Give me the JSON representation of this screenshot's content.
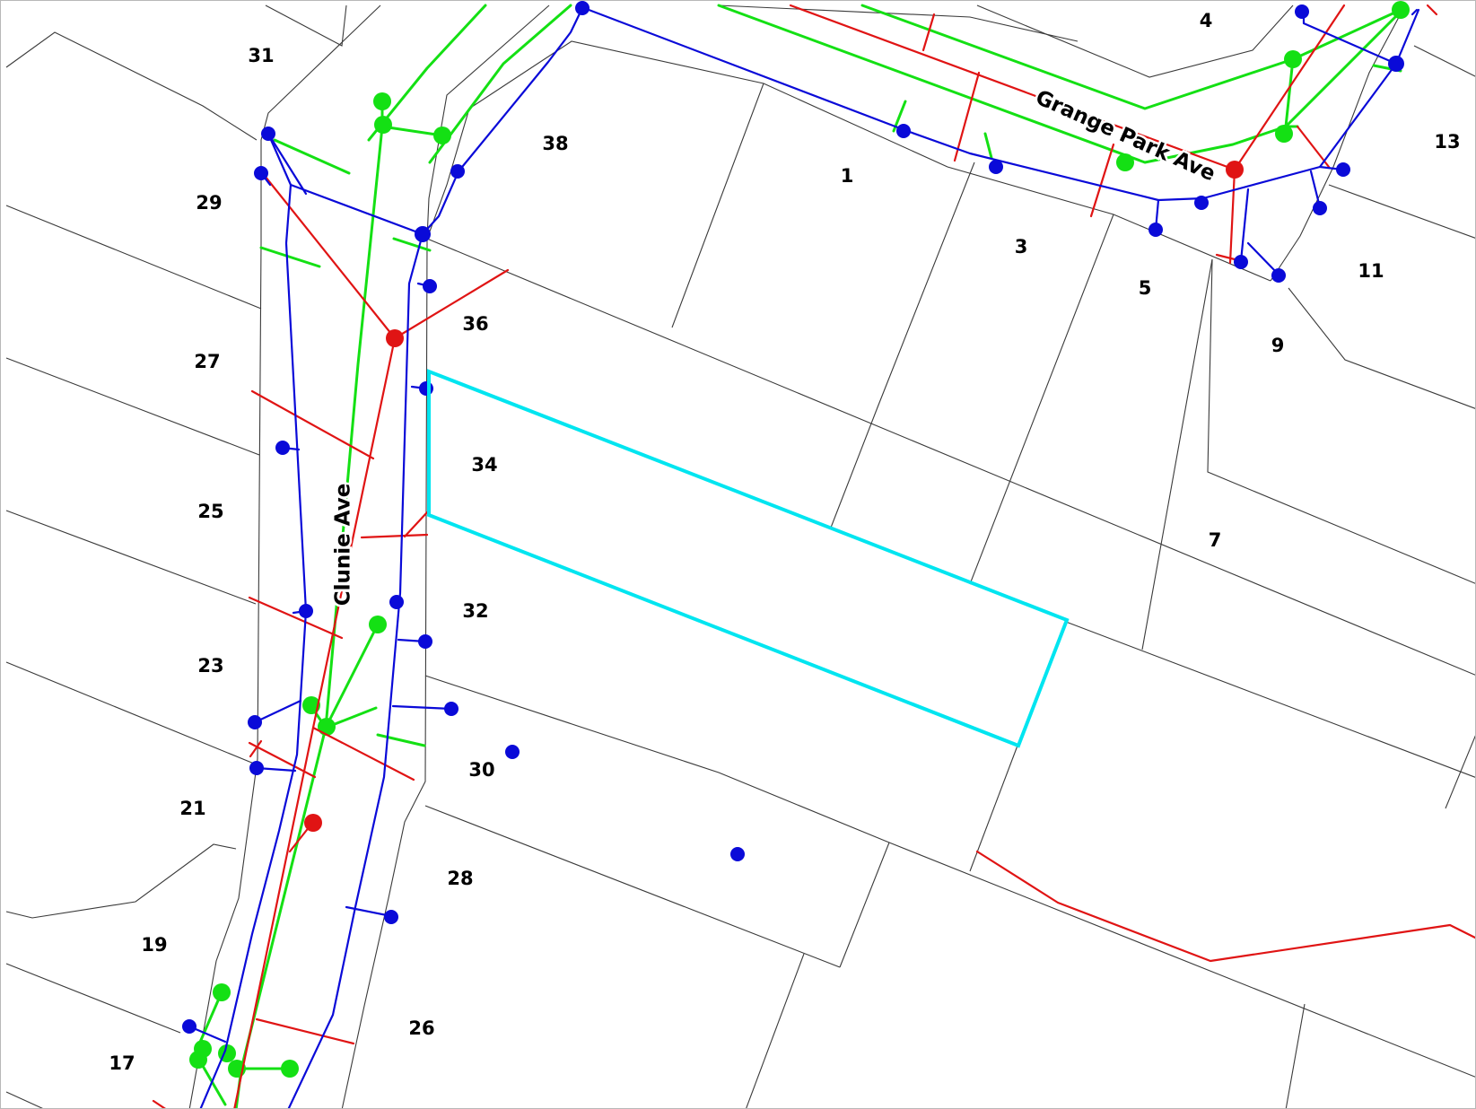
{
  "map": {
    "streets": {
      "clunie": "Clunie Ave",
      "grange_park": "Grange Park Ave"
    },
    "lots": {
      "l31": "31",
      "l29": "29",
      "l27": "27",
      "l25": "25",
      "l23": "23",
      "l21": "21",
      "l19": "19",
      "l17": "17",
      "l38": "38",
      "l36": "36",
      "l34": "34",
      "l32": "32",
      "l30": "30",
      "l28": "28",
      "l26": "26",
      "l1": "1",
      "l3": "3",
      "l5": "5",
      "l7": "7",
      "l9": "9",
      "l11": "11",
      "l13": "13",
      "l4": "4"
    },
    "selected_parcel": "34",
    "colors": {
      "water": "#0a0ad8",
      "gas": "#14e014",
      "power": "#e01414",
      "highlight": "#00e5f0",
      "parcel_outline": "#3a3a3a",
      "background": "#ffffff"
    }
  }
}
